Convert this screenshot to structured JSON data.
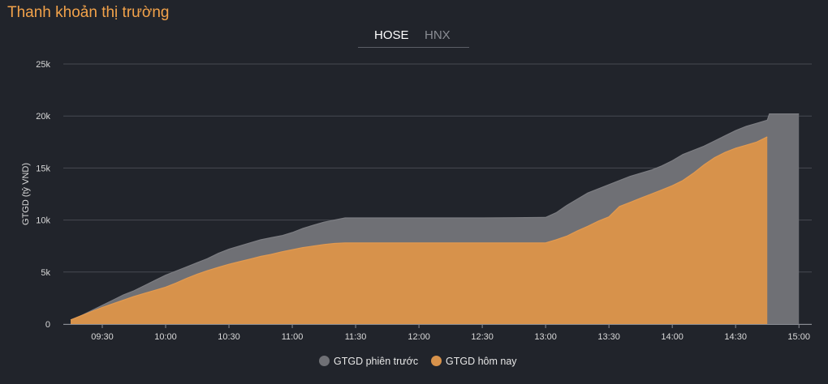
{
  "header": {
    "title": "Thanh khoản thị trường"
  },
  "tabs": [
    {
      "label": "HOSE",
      "active": true
    },
    {
      "label": "HNX",
      "active": false
    }
  ],
  "colors": {
    "previous": "#6f7075",
    "today": "#d7924b",
    "grid": "#474a52",
    "text": "#d9d9d9"
  },
  "chart_data": {
    "type": "area",
    "title": "",
    "ylabel": "GTGD (tỷ VND)",
    "xlabel": "",
    "ylim": [
      0,
      25000
    ],
    "yticks": [
      0,
      5000,
      10000,
      15000,
      20000,
      25000
    ],
    "ytick_labels": [
      "0",
      "5k",
      "10k",
      "15k",
      "20k",
      "25k"
    ],
    "xlim": [
      "09:15",
      "15:00"
    ],
    "xticks": [
      "09:30",
      "10:00",
      "10:30",
      "11:00",
      "11:30",
      "12:00",
      "12:30",
      "13:00",
      "13:30",
      "14:00",
      "14:30",
      "15:00"
    ],
    "grid": true,
    "legend": "bottom-center",
    "series": [
      {
        "name": "GTGD phiên trước",
        "x": [
          "09:15",
          "09:20",
          "09:25",
          "09:30",
          "09:35",
          "09:40",
          "09:45",
          "09:50",
          "09:55",
          "10:00",
          "10:05",
          "10:10",
          "10:15",
          "10:20",
          "10:25",
          "10:30",
          "10:35",
          "10:40",
          "10:45",
          "10:50",
          "10:55",
          "11:00",
          "11:05",
          "11:10",
          "11:15",
          "11:20",
          "11:25",
          "11:30",
          "12:00",
          "12:30",
          "13:00",
          "13:05",
          "13:10",
          "13:15",
          "13:20",
          "13:25",
          "13:30",
          "13:35",
          "13:40",
          "13:45",
          "13:50",
          "13:55",
          "14:00",
          "14:05",
          "14:10",
          "14:15",
          "14:20",
          "14:25",
          "14:30",
          "14:35",
          "14:40",
          "14:45",
          "14:46",
          "14:50",
          "14:55",
          "15:00"
        ],
        "values": [
          400,
          800,
          1300,
          1800,
          2300,
          2800,
          3200,
          3700,
          4200,
          4700,
          5100,
          5500,
          5900,
          6300,
          6800,
          7200,
          7500,
          7800,
          8100,
          8300,
          8500,
          8800,
          9200,
          9500,
          9800,
          10000,
          10200,
          10200,
          10200,
          10200,
          10250,
          10700,
          11400,
          12000,
          12600,
          13000,
          13400,
          13800,
          14200,
          14500,
          14800,
          15200,
          15700,
          16300,
          16700,
          17100,
          17600,
          18100,
          18600,
          19000,
          19300,
          19600,
          20200,
          20200,
          20200,
          20200
        ]
      },
      {
        "name": "GTGD hôm nay",
        "x": [
          "09:15",
          "09:20",
          "09:25",
          "09:30",
          "09:35",
          "09:40",
          "09:45",
          "09:50",
          "09:55",
          "10:00",
          "10:05",
          "10:10",
          "10:15",
          "10:20",
          "10:25",
          "10:30",
          "10:35",
          "10:40",
          "10:45",
          "10:50",
          "10:55",
          "11:00",
          "11:05",
          "11:10",
          "11:15",
          "11:20",
          "11:25",
          "11:30",
          "12:00",
          "12:30",
          "13:00",
          "13:05",
          "13:10",
          "13:15",
          "13:20",
          "13:25",
          "13:30",
          "13:35",
          "13:40",
          "13:45",
          "13:50",
          "13:55",
          "14:00",
          "14:05",
          "14:10",
          "14:15",
          "14:20",
          "14:25",
          "14:30",
          "14:35",
          "14:40",
          "14:45"
        ],
        "values": [
          400,
          800,
          1200,
          1600,
          1950,
          2300,
          2650,
          2950,
          3250,
          3550,
          3950,
          4400,
          4800,
          5150,
          5450,
          5750,
          6000,
          6250,
          6500,
          6700,
          6950,
          7150,
          7350,
          7500,
          7650,
          7750,
          7800,
          7800,
          7800,
          7800,
          7800,
          8100,
          8450,
          8950,
          9400,
          9900,
          10300,
          11300,
          11700,
          12100,
          12500,
          12900,
          13300,
          13800,
          14500,
          15300,
          16000,
          16500,
          16900,
          17200,
          17500,
          18000
        ]
      }
    ]
  }
}
